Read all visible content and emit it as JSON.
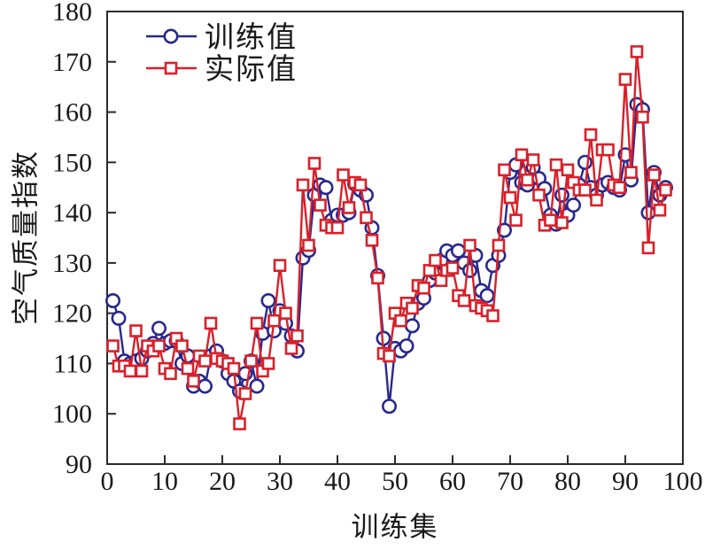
{
  "chart_data": {
    "type": "line",
    "title": "",
    "xlabel": "训练集",
    "ylabel": "空气质量指数",
    "xlim": [
      0,
      100
    ],
    "ylim": [
      90,
      180
    ],
    "x_tick_step": 10,
    "y_tick_step": 10,
    "grid": false,
    "legend_position": "top-left",
    "x_start": 1,
    "frame_color": "#2b2b2b",
    "text_color": "#1a1a1a",
    "series": [
      {
        "name": "训练值",
        "marker": "circle",
        "color": "#28288C",
        "values": [
          122.5,
          119,
          110.5,
          110,
          110.5,
          111,
          112.5,
          114,
          117,
          114,
          114.5,
          114.5,
          110,
          111.5,
          105.5,
          106.5,
          105.5,
          111.5,
          112.5,
          110.5,
          108,
          106.5,
          104.5,
          108,
          110.5,
          105.5,
          116,
          122.5,
          116.5,
          120.5,
          118,
          115.5,
          112.5,
          131,
          132.5,
          143.5,
          145.5,
          145,
          138.5,
          139.5,
          139.5,
          140,
          145.7,
          144.5,
          143.5,
          137,
          127.5,
          115,
          101.5,
          113,
          112.5,
          113.5,
          117.5,
          122,
          123,
          126.5,
          128,
          130.5,
          132.4,
          131.5,
          132.4,
          130,
          128.5,
          131.5,
          124.5,
          123.5,
          129.5,
          131.5,
          136.5,
          148,
          149.5,
          146,
          145.5,
          149,
          146.8,
          144.8,
          139.5,
          137.7,
          143.5,
          139.5,
          141.5,
          145.5,
          150,
          145,
          143.5,
          145.5,
          146,
          145,
          144.5,
          151.5,
          146.5,
          161.5,
          160.5,
          140,
          148,
          143.5,
          145
        ]
      },
      {
        "name": "实际值",
        "marker": "square",
        "color": "#D9202A",
        "values": [
          113.5,
          109.5,
          109.5,
          108.5,
          116.5,
          108.5,
          113.5,
          112.5,
          113.5,
          109,
          108,
          115,
          113.5,
          109,
          106.5,
          111.5,
          110.5,
          118,
          111,
          110.5,
          110,
          109,
          98,
          104,
          110.5,
          118,
          108.5,
          110,
          118.5,
          129.5,
          120,
          113,
          115.5,
          145.5,
          133.5,
          149.8,
          141.5,
          137.5,
          137,
          137,
          147.5,
          141,
          146,
          145.5,
          139,
          134.5,
          127,
          112,
          111.5,
          120,
          118.5,
          122,
          121,
          125.5,
          125,
          128.5,
          130.5,
          126.5,
          128.5,
          129,
          123.5,
          122.5,
          133.5,
          121.5,
          121,
          120.5,
          119.5,
          133.5,
          148.5,
          143,
          138.5,
          151.5,
          146.5,
          150.5,
          143.5,
          137.5,
          138.5,
          149.5,
          138,
          148.5,
          146,
          144.5,
          144.5,
          155.5,
          142.5,
          152.5,
          152.5,
          145.5,
          145,
          166.5,
          148,
          172,
          159,
          133,
          147.5,
          140.5,
          144.5
        ]
      }
    ],
    "legend": [
      {
        "label": "训练值"
      },
      {
        "label": "实际值"
      }
    ]
  },
  "layout_text": {
    "x_axis_title": "训练集",
    "y_axis_title": "空气质量指数"
  }
}
